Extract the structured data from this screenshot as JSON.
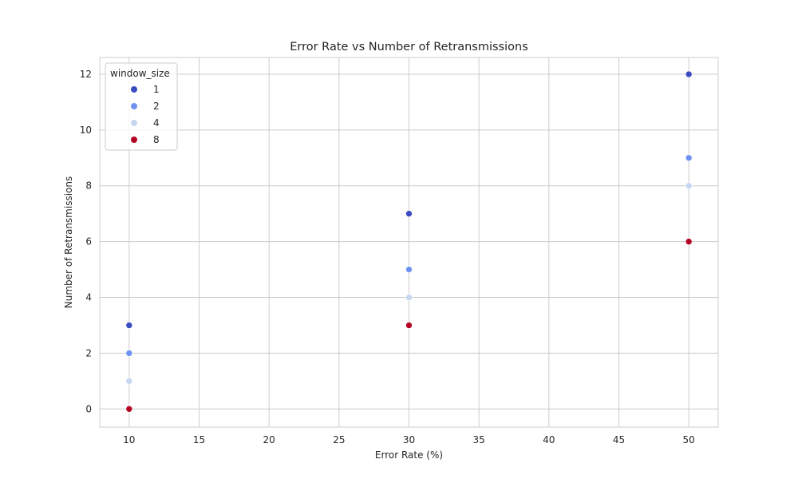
{
  "chart_data": {
    "type": "scatter",
    "title": "Error Rate vs Number of Retransmissions",
    "xlabel": "Error Rate (%)",
    "ylabel": "Number of Retransmissions",
    "xlim": [
      7.9,
      52.1
    ],
    "ylim": [
      -0.65,
      12.6
    ],
    "xticks": [
      10,
      15,
      20,
      25,
      30,
      35,
      40,
      45,
      50
    ],
    "yticks": [
      0,
      2,
      4,
      6,
      8,
      10,
      12
    ],
    "grid": true,
    "legend": {
      "title": "window_size",
      "placement": "top-left"
    },
    "series": [
      {
        "name": "1",
        "color": "#3b4cc0",
        "x": [
          10,
          30,
          50
        ],
        "y": [
          3,
          7,
          12
        ]
      },
      {
        "name": "2",
        "color": "#6f91f2",
        "x": [
          10,
          30,
          50
        ],
        "y": [
          2,
          5,
          9
        ]
      },
      {
        "name": "4",
        "color": "#c6d6f0",
        "x": [
          10,
          30,
          50
        ],
        "y": [
          1,
          4,
          8
        ]
      },
      {
        "name": "8",
        "color": "#b40426",
        "x": [
          10,
          30,
          50
        ],
        "y": [
          0,
          3,
          6
        ]
      }
    ]
  }
}
